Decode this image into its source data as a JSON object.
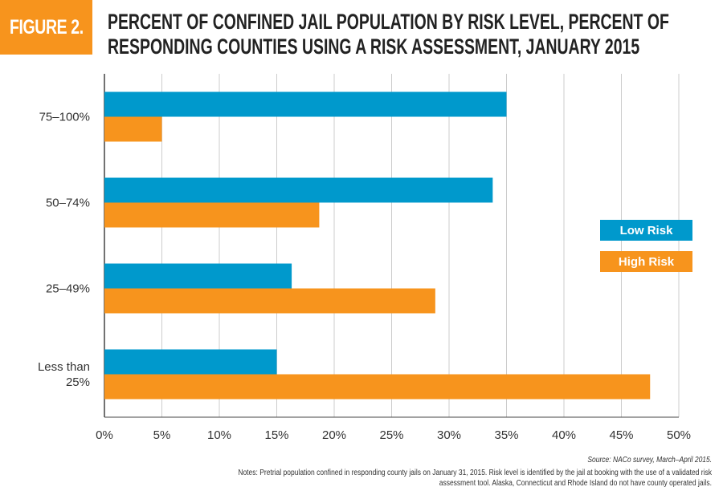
{
  "figure_label": "FIGURE 2.",
  "title_lines": [
    "PERCENT OF CONFINED JAIL POPULATION BY RISK LEVEL, PERCENT OF",
    "RESPONDING COUNTIES USING A RISK ASSESSMENT, JANUARY 2015"
  ],
  "source": "Source: NACo survey, March–April 2015.",
  "notes": "Notes: Pretrial population confined in responding county jails on January 31, 2015. Risk level is identified by the jail at booking with the use of a validated risk assessment tool. Alaska, Connecticut and Rhode Island do not have county operated jails.",
  "colors": {
    "low_risk": "#0099cc",
    "high_risk": "#f7941d",
    "grid": "#cccccc",
    "axis": "#444444"
  },
  "chart_data": {
    "type": "bar",
    "orientation": "horizontal",
    "title": "PERCENT OF CONFINED JAIL POPULATION BY RISK LEVEL, PERCENT OF RESPONDING COUNTIES USING A RISK ASSESSMENT, JANUARY 2015",
    "categories": [
      "75–100%",
      "50–74%",
      "25–49%",
      "Less than 25%"
    ],
    "series": [
      {
        "name": "Low Risk",
        "values": [
          35,
          33.8,
          16.3,
          15
        ]
      },
      {
        "name": "High Risk",
        "values": [
          5,
          18.7,
          28.8,
          47.5
        ]
      }
    ],
    "xlim": [
      0,
      50
    ],
    "xticks": [
      "0%",
      "5%",
      "10%",
      "15%",
      "20%",
      "25%",
      "30%",
      "35%",
      "40%",
      "45%",
      "50%"
    ],
    "grid": true,
    "legend_position": "right"
  }
}
